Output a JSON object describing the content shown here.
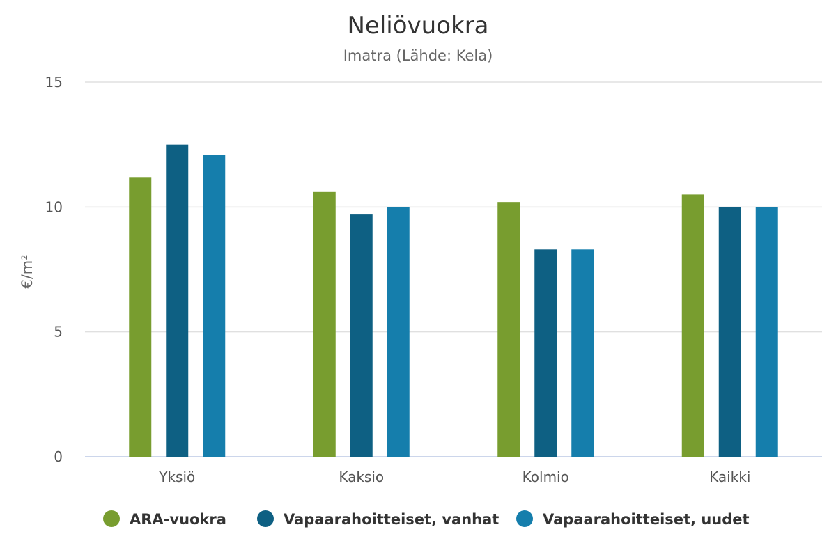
{
  "chart_data": {
    "type": "bar",
    "title": "Neliövuokra",
    "subtitle": "Imatra (Lähde: Kela)",
    "ylabel": "€/m²",
    "xlabel": "",
    "ylim": [
      0,
      15
    ],
    "yticks": [
      0,
      5,
      10,
      15
    ],
    "grid": true,
    "legend_position": "bottom",
    "categories": [
      "Yksiö",
      "Kaksio",
      "Kolmio",
      "Kaikki"
    ],
    "series": [
      {
        "name": "ARA-vuokra",
        "color": "#789d2f",
        "values": [
          11.2,
          10.6,
          10.2,
          10.5
        ]
      },
      {
        "name": "Vapaarahoitteiset, vanhat",
        "color": "#0e6083",
        "values": [
          12.5,
          9.7,
          8.3,
          10.0
        ]
      },
      {
        "name": "Vapaarahoitteiset, uudet",
        "color": "#157eac",
        "values": [
          12.1,
          10.0,
          8.3,
          10.0
        ]
      }
    ]
  }
}
